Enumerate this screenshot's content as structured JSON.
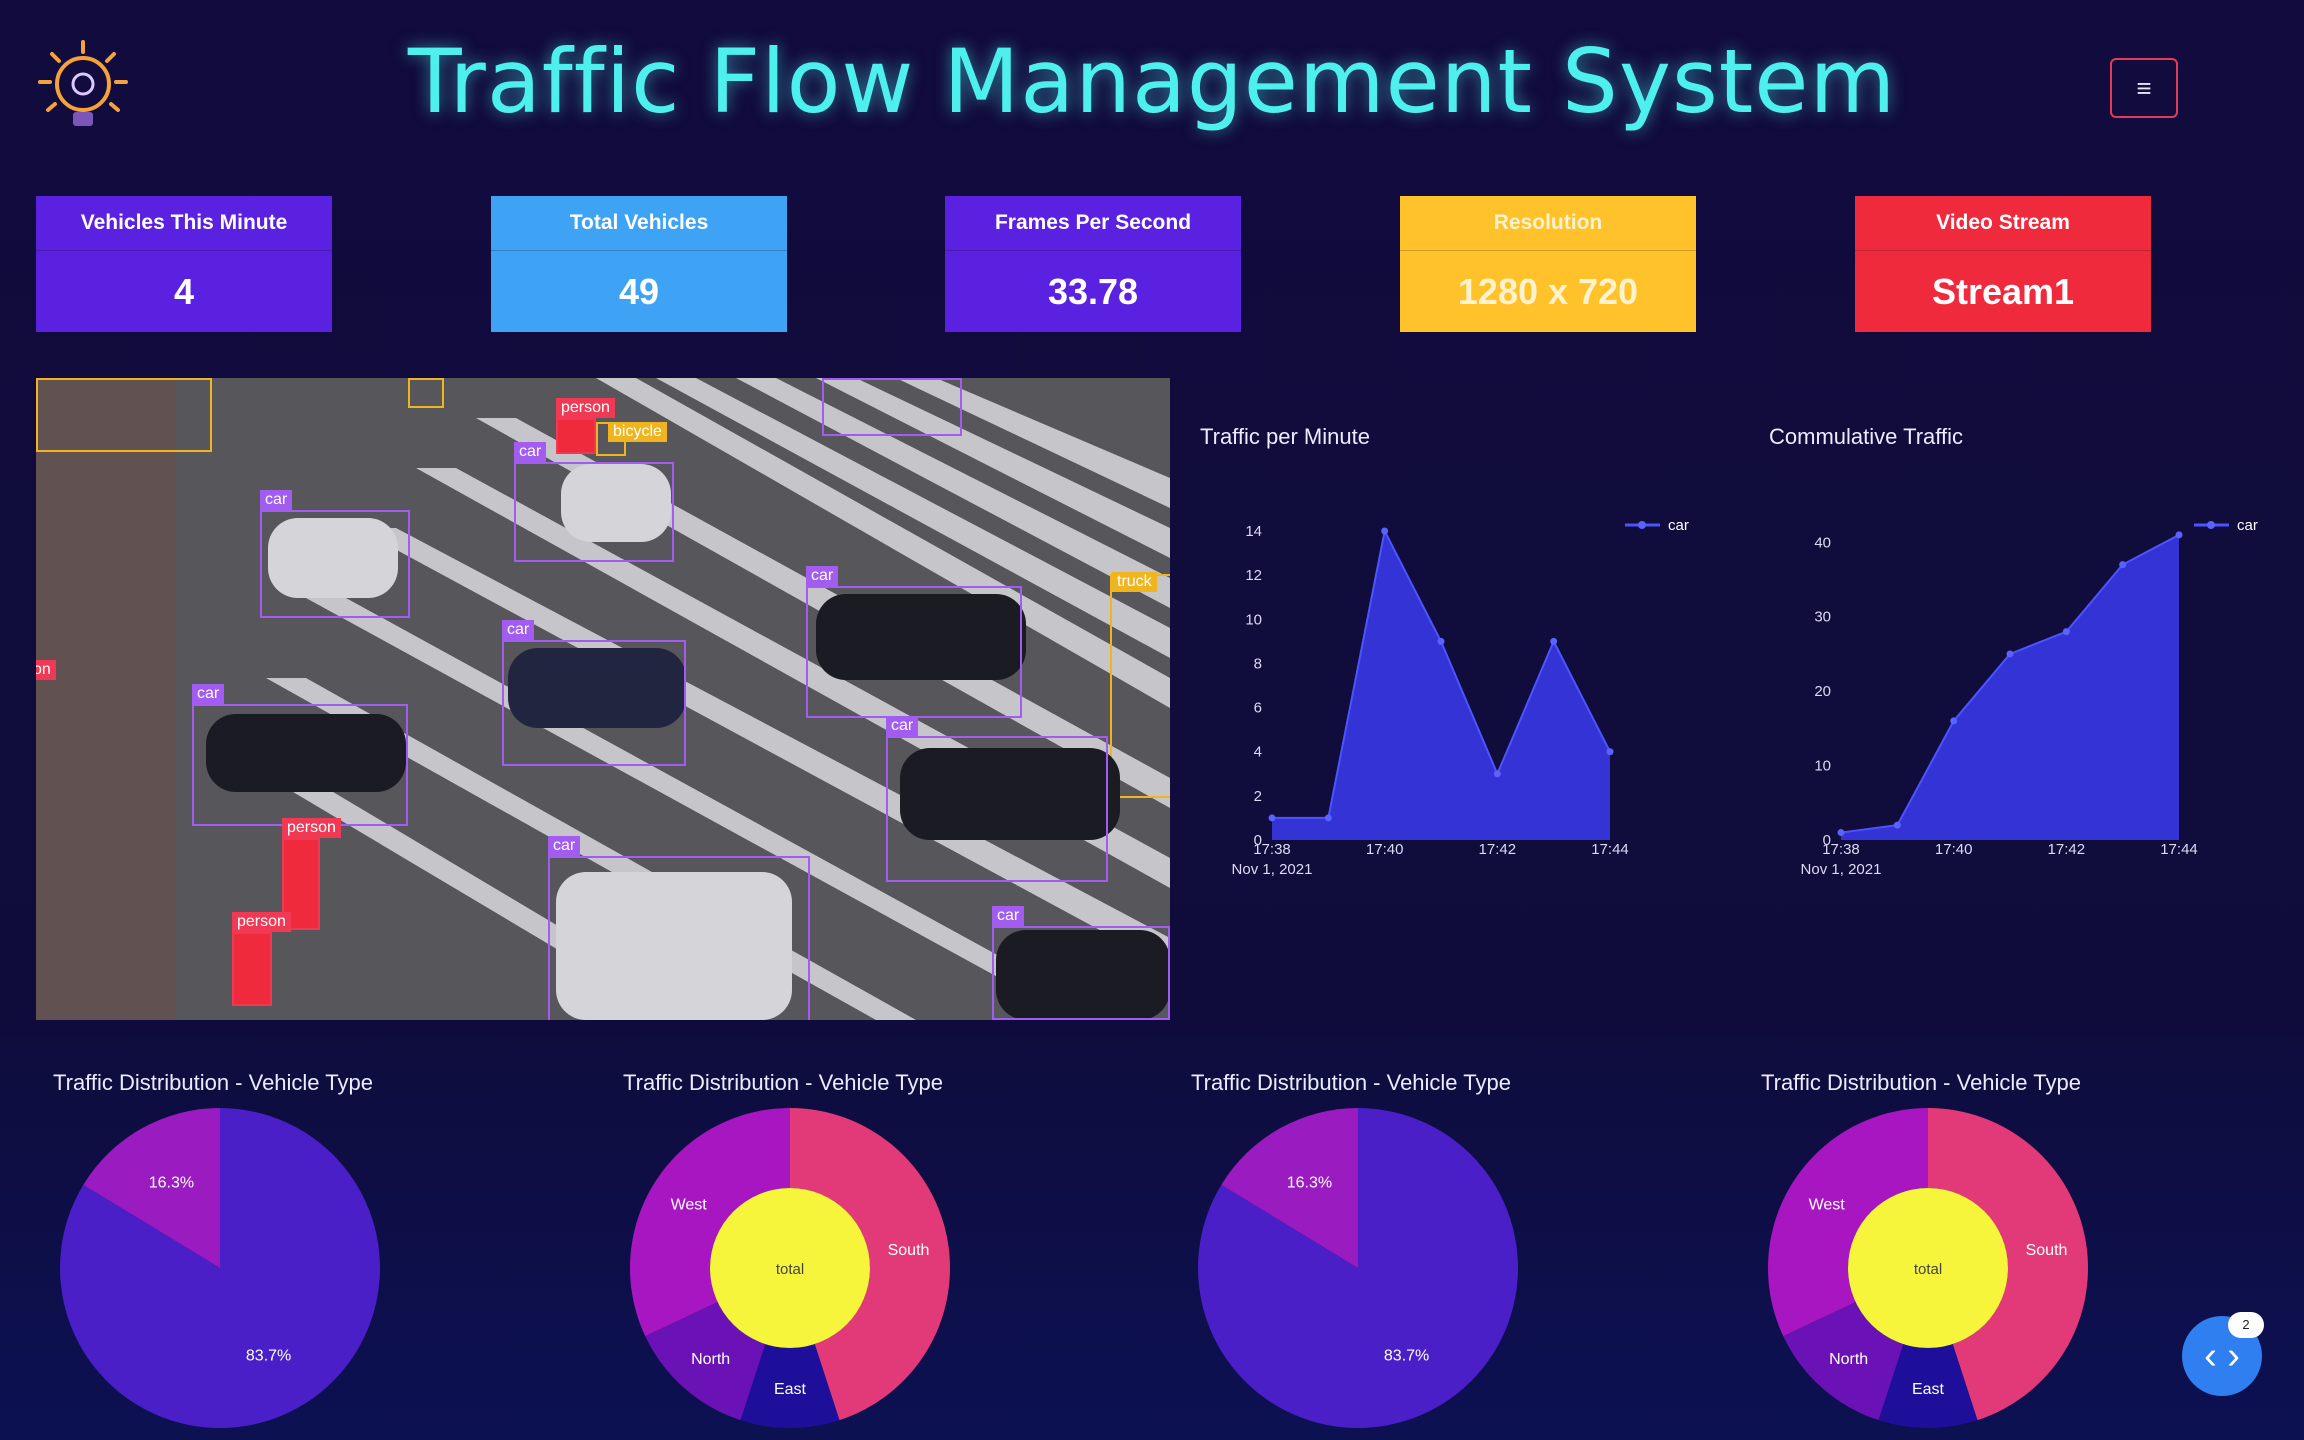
{
  "header": {
    "title": "Traffic Flow Management System",
    "logo_icon": "lightbulb-gear-icon",
    "menu_icon": "hamburger-menu-icon",
    "menu_glyph": "≡"
  },
  "stats": [
    {
      "label": "Vehicles This Minute",
      "value": "4",
      "color": "#5a22e0"
    },
    {
      "label": "Total Vehicles",
      "value": "49",
      "color": "#3fa3f5"
    },
    {
      "label": "Frames Per Second",
      "value": "33.78",
      "color": "#5a22e0"
    },
    {
      "label": "Resolution",
      "value": "1280 x 720",
      "color": "#ffc22a"
    },
    {
      "label": "Video Stream",
      "value": "Stream1",
      "color": "#ee2a3c"
    }
  ],
  "video": {
    "detections": [
      "person",
      "bicycle",
      "car",
      "car",
      "car",
      "car",
      "truck",
      "car",
      "car",
      "on",
      "person",
      "car",
      "person",
      "car"
    ]
  },
  "chart_data": [
    {
      "type": "area",
      "title": "Traffic per Minute",
      "x": [
        "17:38",
        "17:39",
        "17:40",
        "17:41",
        "17:42",
        "17:43",
        "17:44"
      ],
      "x_ticks": [
        "17:38",
        "17:40",
        "17:42",
        "17:44"
      ],
      "x_sub": "Nov 1, 2021",
      "y_ticks": [
        0,
        2,
        4,
        6,
        8,
        10,
        12,
        14
      ],
      "ylim": [
        0,
        14.5
      ],
      "series": [
        {
          "name": "car",
          "values": [
            1,
            1,
            14,
            9,
            3,
            9,
            4
          ]
        }
      ],
      "legend": "top-right",
      "color": "#3b3bf0"
    },
    {
      "type": "area",
      "title": "Commulative Traffic",
      "x": [
        "17:38",
        "17:39",
        "17:40",
        "17:41",
        "17:42",
        "17:43",
        "17:44"
      ],
      "x_ticks": [
        "17:38",
        "17:40",
        "17:42",
        "17:44"
      ],
      "x_sub": "Nov 1, 2021",
      "y_ticks": [
        0,
        10,
        20,
        30,
        40
      ],
      "ylim": [
        0,
        43
      ],
      "series": [
        {
          "name": "car",
          "values": [
            1,
            2,
            16,
            25,
            28,
            37,
            41
          ]
        }
      ],
      "legend": "top-right",
      "color": "#3b3bf0"
    },
    {
      "type": "pie",
      "title": "Traffic Distribution - Vehicle Type",
      "slices": [
        {
          "label": "83.7%",
          "value": 83.7,
          "color": "#4a1fc8"
        },
        {
          "label": "16.3%",
          "value": 16.3,
          "color": "#9a1bc0"
        }
      ]
    },
    {
      "type": "pie",
      "title": "Traffic Distribution - Vehicle Type",
      "center_label": "total",
      "slices": [
        {
          "label": "South",
          "value": 45,
          "color": "#e23a78"
        },
        {
          "label": "East",
          "value": 10,
          "color": "#1e0f9a"
        },
        {
          "label": "North",
          "value": 13,
          "color": "#6a12b5"
        },
        {
          "label": "West",
          "value": 32,
          "color": "#a816c2"
        }
      ]
    },
    {
      "type": "pie",
      "title": "Traffic Distribution - Vehicle Type",
      "slices": [
        {
          "label": "83.7%",
          "value": 83.7,
          "color": "#4a1fc8"
        },
        {
          "label": "16.3%",
          "value": 16.3,
          "color": "#9a1bc0"
        }
      ]
    },
    {
      "type": "pie",
      "title": "Traffic Distribution - Vehicle Type",
      "center_label": "total",
      "slices": [
        {
          "label": "South",
          "value": 45,
          "color": "#e23a78"
        },
        {
          "label": "East",
          "value": 10,
          "color": "#1e0f9a"
        },
        {
          "label": "North",
          "value": 13,
          "color": "#6a12b5"
        },
        {
          "label": "West",
          "value": 32,
          "color": "#a816c2"
        }
      ]
    }
  ],
  "float_button": {
    "glyph": "‹ ›",
    "badge": "2",
    "icon": "code-brackets-icon"
  }
}
